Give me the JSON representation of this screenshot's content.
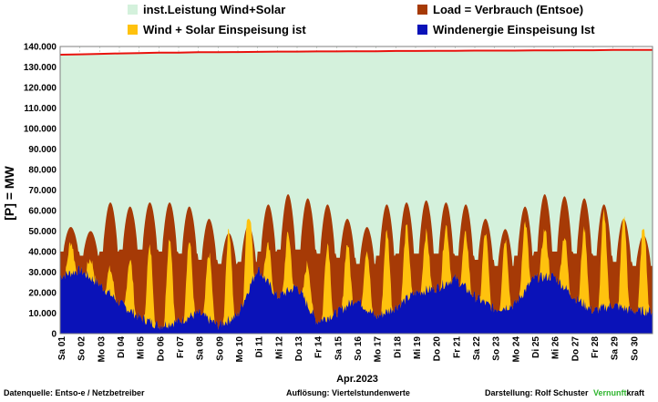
{
  "legend": {
    "installed": {
      "label": "inst.Leistung Wind+Solar",
      "color": "#d4f1dc"
    },
    "load": {
      "label": "Load =  Verbrauch (Entsoe)",
      "color": "#a63a06"
    },
    "windsolar": {
      "label": "Wind + Solar Einspeisung ist",
      "color": "#ffc20e"
    },
    "wind": {
      "label": "Windenergie Einspeisung Ist",
      "color": "#0a12b8"
    }
  },
  "footer": {
    "source": "Datenquelle:  Entso-e  / Netzbetreiber",
    "resolution": "Auflösung: Viertelstundenwerte",
    "author": "Darstellung:  Rolf Schuster",
    "brand_a": "Vernunft",
    "brand_b": "kraft"
  },
  "chart_data": {
    "type": "area",
    "ylabel": "[P] = MW",
    "xlabel": "Apr.2023",
    "ylim": [
      0,
      140000
    ],
    "yticks": [
      "0",
      "10.000",
      "20.000",
      "30.000",
      "40.000",
      "50.000",
      "60.000",
      "70.000",
      "80.000",
      "90.000",
      "100.000",
      "110.000",
      "120.000",
      "130.000",
      "140.000"
    ],
    "categories": [
      "Sa 01",
      "So 02",
      "Mo 03",
      "Di 04",
      "Mi 05",
      "Do 06",
      "Fr 07",
      "Sa 08",
      "So 09",
      "Mo 10",
      "Di 11",
      "Mi 12",
      "Do 13",
      "Fr 14",
      "Sa 15",
      "So 16",
      "Mo 17",
      "Di 18",
      "Mi 19",
      "Do 20",
      "Fr 21",
      "Sa 22",
      "So 23",
      "Mo 24",
      "Di 25",
      "Mi 26",
      "Do 27",
      "Fr 28",
      "Sa 29",
      "So 30"
    ],
    "grid": true,
    "legend_position": "top",
    "series": [
      {
        "name": "inst.Leistung Wind+Solar",
        "values": [
          136000,
          136200,
          136400,
          136600,
          136800,
          137000,
          137000,
          137200,
          137200,
          137300,
          137400,
          137500,
          137500,
          137600,
          137600,
          137700,
          137700,
          137800,
          137800,
          137900,
          137900,
          138000,
          138000,
          138000,
          138100,
          138100,
          138200,
          138200,
          138300,
          138300
        ]
      },
      {
        "name": "Load =  Verbrauch (Entsoe)",
        "daily_peak": [
          52000,
          50000,
          64000,
          62000,
          64000,
          64000,
          62000,
          56000,
          49000,
          53000,
          63000,
          68000,
          66000,
          63000,
          56000,
          52000,
          63000,
          64000,
          65000,
          64000,
          63000,
          56000,
          51000,
          62000,
          68000,
          67000,
          66000,
          63000,
          56000,
          48000
        ],
        "daily_min": [
          40000,
          38000,
          40000,
          41000,
          41000,
          40000,
          39000,
          36000,
          34000,
          35000,
          40000,
          41000,
          41000,
          39000,
          37000,
          34000,
          38000,
          39000,
          39000,
          39000,
          38000,
          36000,
          33000,
          38000,
          40000,
          40000,
          39000,
          38000,
          35000,
          33000
        ]
      },
      {
        "name": "Wind + Solar Einspeisung ist",
        "daily_peak": [
          43000,
          40000,
          36000,
          40000,
          44000,
          46000,
          43000,
          42000,
          48000,
          55000,
          50000,
          46000,
          43000,
          42000,
          40000,
          46000,
          47000,
          48000,
          48000,
          50000,
          53000,
          52000,
          45000,
          47000,
          50000,
          53000,
          55000,
          57000,
          59000,
          55000
        ]
      },
      {
        "name": "Windenergie Einspeisung Ist",
        "daily_avg": [
          28000,
          31000,
          24000,
          15000,
          8000,
          4000,
          6000,
          10000,
          4000,
          9000,
          32000,
          18000,
          23000,
          6000,
          10000,
          17000,
          8000,
          13000,
          20000,
          22000,
          27000,
          18000,
          12000,
          14000,
          27000,
          28000,
          18000,
          11000,
          14000,
          11000
        ]
      }
    ]
  }
}
